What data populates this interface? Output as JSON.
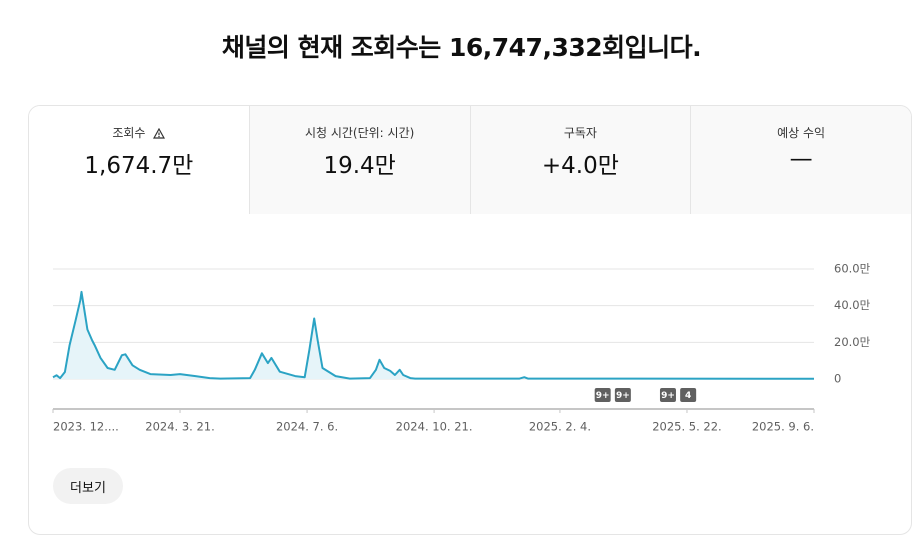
{
  "header": {
    "title": "채널의 현재 조회수는 16,747,332회입니다."
  },
  "tabs": [
    {
      "label": "조회수",
      "value": "1,674.7만"
    },
    {
      "label": "시청 시간(단위: 시간)",
      "value": "19.4만"
    },
    {
      "label": "구독자",
      "value": "+4.0만"
    },
    {
      "label": "예상 수익",
      "value": "—"
    }
  ],
  "chart_data": {
    "type": "line",
    "color": "#2ba3c4",
    "fill": "#e6f4f9",
    "grid": true,
    "x": [
      "2023-12-05",
      "2023-12-08",
      "2023-12-11",
      "2023-12-15",
      "2023-12-19",
      "2023-12-24",
      "2023-12-28",
      "2023-12-29",
      "2024-01-01",
      "2024-01-03",
      "2024-01-07",
      "2024-01-09",
      "2024-01-14",
      "2024-01-20",
      "2024-01-26",
      "2024-02-01",
      "2024-02-04",
      "2024-02-10",
      "2024-02-16",
      "2024-02-25",
      "2024-03-13",
      "2024-03-21",
      "2024-04-03",
      "2024-04-15",
      "2024-04-24",
      "2024-05-19",
      "2024-05-23",
      "2024-05-29",
      "2024-06-03",
      "2024-06-06",
      "2024-06-13",
      "2024-06-26",
      "2024-07-04",
      "2024-07-08",
      "2024-07-12",
      "2024-07-15",
      "2024-07-19",
      "2024-07-30",
      "2024-08-11",
      "2024-08-28",
      "2024-09-02",
      "2024-09-05",
      "2024-09-09",
      "2024-09-14",
      "2024-09-18",
      "2024-09-22",
      "2024-09-25",
      "2024-10-01",
      "2024-10-05",
      "2025-01-01",
      "2025-01-05",
      "2025-01-08",
      "2025-09-06"
    ],
    "values": [
      10000,
      20000,
      5000,
      38000,
      185000,
      320000,
      430000,
      475000,
      350000,
      270000,
      210000,
      185000,
      115000,
      60000,
      50000,
      130000,
      135000,
      75000,
      50000,
      27000,
      22000,
      27000,
      16000,
      5000,
      2000,
      5000,
      50000,
      140000,
      87000,
      115000,
      40000,
      16000,
      10000,
      160000,
      330000,
      210000,
      60000,
      16000,
      2000,
      5000,
      50000,
      105000,
      60000,
      44000,
      22000,
      50000,
      22000,
      5000,
      2000,
      2000,
      10000,
      2000,
      1000
    ],
    "xlim": [
      "2023-12-05",
      "2025-09-06"
    ],
    "xticks": [
      {
        "value": "2023-12-05",
        "label": "2023. 12...."
      },
      {
        "value": "2024-03-21",
        "label": "2024. 3. 21."
      },
      {
        "value": "2024-07-06",
        "label": "2024. 7. 6."
      },
      {
        "value": "2024-10-21",
        "label": "2024. 10. 21."
      },
      {
        "value": "2025-02-04",
        "label": "2025. 2. 4."
      },
      {
        "value": "2025-05-22",
        "label": "2025. 5. 22."
      },
      {
        "value": "2025-09-06",
        "label": "2025. 9. 6."
      }
    ],
    "ylim": [
      0,
      600000
    ],
    "yticks": [
      0,
      {
        "value": 200000,
        "label": "20.0만"
      },
      {
        "value": 400000,
        "label": "40.0만"
      },
      {
        "value": 600000,
        "label": "60.0만"
      }
    ],
    "annotations": [
      {
        "x": "2025-03-12",
        "label": "9+"
      },
      {
        "x": "2025-03-29",
        "label": "9+"
      },
      {
        "x": "2025-05-06",
        "label": "9+"
      },
      {
        "x": "2025-05-23",
        "label": "4"
      }
    ]
  },
  "button": "더보기"
}
